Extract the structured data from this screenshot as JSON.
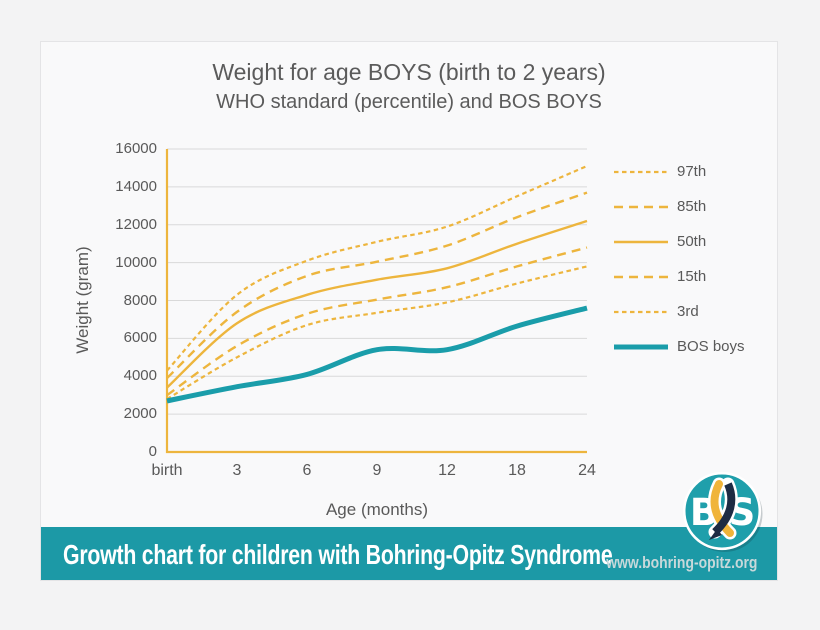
{
  "page": {
    "background": "#f3f3f4"
  },
  "chart_data": {
    "type": "line",
    "title": "Weight for age BOYS (birth to 2 years)",
    "subtitle": "WHO standard (percentile) and BOS BOYS",
    "xlabel": "Age (months)",
    "ylabel": "Weight (gram)",
    "categories": [
      "birth",
      "3",
      "6",
      "9",
      "12",
      "18",
      "24"
    ],
    "ylim": [
      0,
      16000
    ],
    "yticks": [
      0,
      2000,
      4000,
      6000,
      8000,
      10000,
      12000,
      14000,
      16000
    ],
    "grid": true,
    "grid_color": "#d9d9d9",
    "axis_color": "#edb53d",
    "text_color": "#595959",
    "legend_position": "right",
    "series": [
      {
        "name": "97th",
        "color": "#edb53d",
        "dash": "fine",
        "width": 2.2,
        "values": [
          4300,
          8300,
          10100,
          11100,
          11900,
          13500,
          15100
        ]
      },
      {
        "name": "85th",
        "color": "#edb53d",
        "dash": "long",
        "width": 2.4,
        "values": [
          3900,
          7400,
          9300,
          10050,
          10900,
          12400,
          13700
        ]
      },
      {
        "name": "50th",
        "color": "#edb53d",
        "dash": "solid",
        "width": 2.4,
        "values": [
          3400,
          6800,
          8300,
          9100,
          9700,
          11000,
          12200
        ]
      },
      {
        "name": "15th",
        "color": "#edb53d",
        "dash": "long",
        "width": 2.4,
        "values": [
          3000,
          5600,
          7300,
          8050,
          8700,
          9800,
          10800
        ]
      },
      {
        "name": "3rd",
        "color": "#edb53d",
        "dash": "fine",
        "width": 2.2,
        "values": [
          2800,
          5000,
          6700,
          7350,
          7900,
          8900,
          9800
        ]
      },
      {
        "name": "BOS boys",
        "color": "#1a9daa",
        "dash": "solid",
        "width": 5,
        "values": [
          2700,
          3450,
          4100,
          5400,
          5400,
          6650,
          7600
        ]
      }
    ]
  },
  "banner": {
    "headline": "Growth chart for children with Bohring-Opitz Syndrome",
    "url": "www.bohring-opitz.org",
    "background": "#1c99a6"
  },
  "logo": {
    "left_letter": "B",
    "right_letter": "S",
    "circle_color": "#1f9fab",
    "ribbon_left_color": "#f0b43a",
    "ribbon_right_color": "#1d2b43"
  }
}
